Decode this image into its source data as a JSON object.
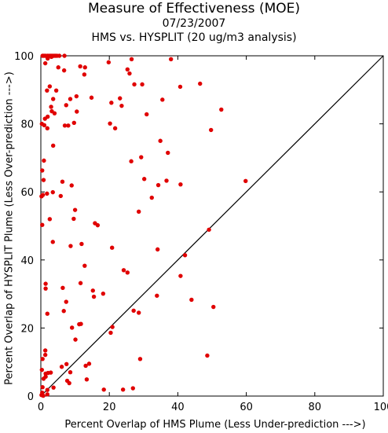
{
  "chart_data": {
    "type": "scatter",
    "title": "Measure of Effectiveness (MOE)",
    "subtitle_date": "07/23/2007",
    "subtitle_comparison": "HMS vs. HYSPLIT  (20 ug/m3 analysis)",
    "xlabel": "Percent Overlap of HMS Plume (Less Under-prediction --->)",
    "ylabel": "Percent Overlap of HYSPLIT Plume (Less Over-prediction --->)",
    "xlim": [
      0,
      100
    ],
    "ylim": [
      0,
      100
    ],
    "xticks": [
      0,
      20,
      40,
      60,
      80,
      100
    ],
    "yticks": [
      0,
      20,
      40,
      60,
      80,
      100
    ],
    "grid": false,
    "reference_line": "y = x",
    "point_color": "#e00000",
    "line_color": "#000000",
    "points": [
      [
        0.5,
        100
      ],
      [
        0.9,
        100
      ],
      [
        1.3,
        100
      ],
      [
        1.9,
        100
      ],
      [
        2.4,
        100
      ],
      [
        2.9,
        100
      ],
      [
        3.3,
        100
      ],
      [
        3.8,
        100
      ],
      [
        4.2,
        100
      ],
      [
        4.7,
        100
      ],
      [
        5.4,
        100
      ],
      [
        6.9,
        100
      ],
      [
        2.0,
        99.2
      ],
      [
        3.1,
        99.7
      ],
      [
        1.3,
        97.8
      ],
      [
        5.1,
        96.6
      ],
      [
        6.8,
        95.7
      ],
      [
        2.6,
        91.0
      ],
      [
        1.8,
        89.8
      ],
      [
        4.5,
        89.8
      ],
      [
        3.6,
        87.3
      ],
      [
        8.6,
        87.3
      ],
      [
        7.4,
        85.5
      ],
      [
        3.0,
        85.0
      ],
      [
        1.2,
        81.5
      ],
      [
        2.0,
        82.1
      ],
      [
        3.2,
        83.7
      ],
      [
        4.0,
        83.1
      ],
      [
        7.0,
        79.5
      ],
      [
        8.0,
        79.5
      ],
      [
        9.7,
        80.3
      ],
      [
        1.0,
        79.6
      ],
      [
        1.9,
        78.7
      ],
      [
        0.3,
        80.0
      ],
      [
        3.6,
        73.6
      ],
      [
        0.9,
        69.2
      ],
      [
        10.5,
        83.6
      ],
      [
        10.4,
        88.1
      ],
      [
        11.5,
        96.9
      ],
      [
        12.9,
        96.6
      ],
      [
        12.7,
        94.5
      ],
      [
        14.8,
        87.7
      ],
      [
        19.8,
        98.1
      ],
      [
        25.3,
        96.0
      ],
      [
        25.9,
        94.8
      ],
      [
        27.3,
        91.6
      ],
      [
        26.5,
        99.0
      ],
      [
        20.6,
        86.2
      ],
      [
        23.1,
        87.5
      ],
      [
        23.6,
        85.3
      ],
      [
        20.2,
        80.1
      ],
      [
        21.7,
        78.7
      ],
      [
        29.6,
        91.6
      ],
      [
        30.9,
        82.8
      ],
      [
        38.0,
        99.0
      ],
      [
        40.7,
        90.9
      ],
      [
        46.5,
        91.8
      ],
      [
        52.7,
        84.2
      ],
      [
        35.5,
        87.1
      ],
      [
        49.7,
        78.2
      ],
      [
        34.9,
        75.0
      ],
      [
        37.1,
        71.5
      ],
      [
        29.3,
        70.2
      ],
      [
        26.4,
        69.0
      ],
      [
        59.8,
        63.2
      ],
      [
        40.8,
        62.2
      ],
      [
        36.7,
        63.3
      ],
      [
        34.3,
        62.0
      ],
      [
        30.2,
        63.8
      ],
      [
        32.4,
        58.3
      ],
      [
        28.6,
        54.2
      ],
      [
        0.4,
        66.3
      ],
      [
        0.2,
        58.7
      ],
      [
        0.6,
        59.1
      ],
      [
        1.8,
        59.5
      ],
      [
        3.5,
        59.9
      ],
      [
        5.8,
        58.8
      ],
      [
        6.3,
        63.0
      ],
      [
        9.0,
        61.9
      ],
      [
        0.8,
        63.5
      ],
      [
        10.0,
        54.7
      ],
      [
        9.6,
        52.1
      ],
      [
        2.6,
        52.0
      ],
      [
        0.4,
        50.3
      ],
      [
        15.8,
        50.8
      ],
      [
        16.6,
        50.2
      ],
      [
        3.5,
        45.3
      ],
      [
        8.7,
        44.1
      ],
      [
        11.9,
        44.7
      ],
      [
        20.8,
        43.6
      ],
      [
        34.1,
        43.1
      ],
      [
        49.1,
        48.9
      ],
      [
        42.1,
        41.4
      ],
      [
        12.8,
        38.3
      ],
      [
        24.2,
        37.0
      ],
      [
        25.3,
        36.3
      ],
      [
        40.8,
        35.3
      ],
      [
        11.6,
        33.2
      ],
      [
        1.4,
        33.0
      ],
      [
        1.4,
        31.6
      ],
      [
        6.4,
        31.8
      ],
      [
        7.4,
        27.7
      ],
      [
        15.2,
        31.0
      ],
      [
        15.5,
        29.2
      ],
      [
        18.2,
        30.1
      ],
      [
        33.9,
        29.5
      ],
      [
        44.0,
        28.3
      ],
      [
        50.4,
        26.2
      ],
      [
        6.7,
        25.0
      ],
      [
        1.9,
        24.2
      ],
      [
        27.1,
        25.1
      ],
      [
        28.6,
        24.5
      ],
      [
        11.2,
        21.1
      ],
      [
        11.7,
        21.2
      ],
      [
        9.1,
        20.1
      ],
      [
        20.9,
        20.3
      ],
      [
        20.4,
        18.6
      ],
      [
        10.1,
        16.6
      ],
      [
        1.3,
        13.4
      ],
      [
        1.3,
        12.1
      ],
      [
        48.6,
        11.9
      ],
      [
        29.0,
        10.9
      ],
      [
        0.5,
        10.9
      ],
      [
        14.1,
        9.5
      ],
      [
        7.5,
        9.4
      ],
      [
        13.1,
        8.9
      ],
      [
        6.1,
        8.6
      ],
      [
        0.3,
        7.7
      ],
      [
        8.6,
        7.0
      ],
      [
        2.9,
        6.9
      ],
      [
        1.4,
        6.6
      ],
      [
        2.1,
        6.8
      ],
      [
        1.4,
        5.7
      ],
      [
        0.8,
        5.1
      ],
      [
        7.7,
        4.5
      ],
      [
        13.4,
        4.9
      ],
      [
        8.3,
        3.8
      ],
      [
        0.5,
        2.6
      ],
      [
        3.7,
        2.5
      ],
      [
        26.9,
        2.3
      ],
      [
        1.9,
        1.8
      ],
      [
        0.4,
        1.0
      ],
      [
        18.4,
        1.9
      ],
      [
        24.0,
        1.9
      ],
      [
        1.9,
        0.5
      ],
      [
        0.2,
        0.3
      ],
      [
        0.7,
        0.1
      ]
    ]
  }
}
